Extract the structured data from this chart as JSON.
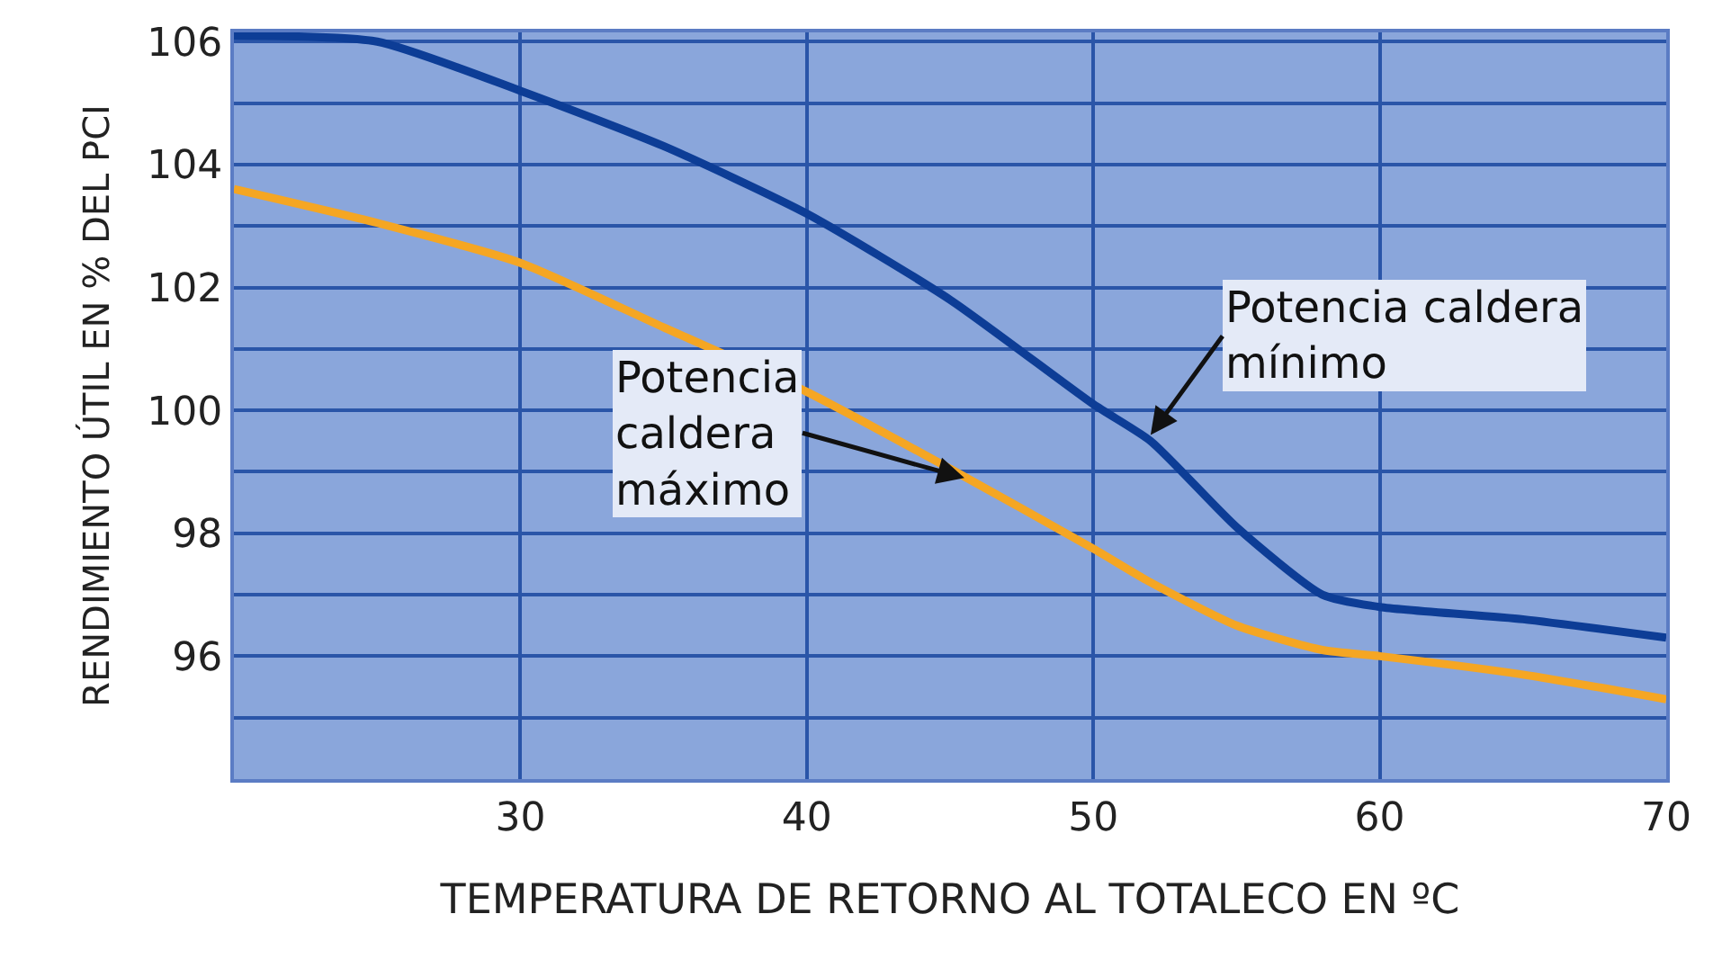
{
  "chart_data": {
    "type": "line",
    "xlabel": "TEMPERATURA DE RETORNO AL TOTALECO EN ºC",
    "ylabel": "RENDIMIENTO ÚTIL EN % DEL PCI",
    "x": [
      20,
      25,
      30,
      35,
      40,
      45,
      50,
      52,
      55,
      58,
      60,
      65,
      70
    ],
    "series": [
      {
        "color": "#0d3d96",
        "values": [
          106.1,
          106.0,
          105.2,
          104.3,
          103.2,
          101.8,
          100.1,
          99.5,
          98.1,
          97.0,
          96.8,
          96.6,
          96.3
        ]
      },
      {
        "color": "#f5a623",
        "values": [
          103.6,
          103.05,
          102.4,
          101.35,
          100.3,
          99.05,
          97.75,
          97.2,
          96.5,
          96.1,
          96.0,
          95.7,
          95.3
        ]
      }
    ],
    "annotations": [
      {
        "text": "Potencia caldera\nmínimo",
        "x": 52,
        "y": 99.6
      },
      {
        "text": "Potencia\ncaldera\nmáximo",
        "x": 45.5,
        "y": 98.9
      }
    ],
    "xlim": [
      20,
      70
    ],
    "xticks": [
      30,
      40,
      50,
      60,
      70
    ],
    "ylim": [
      94,
      106.15
    ],
    "yticks": [
      {
        "value": 95,
        "label": null
      },
      96,
      {
        "value": 97,
        "label": null
      },
      98,
      {
        "value": 99,
        "label": null
      },
      100,
      {
        "value": 101,
        "label": null
      },
      102,
      {
        "value": 103,
        "label": null
      },
      104,
      {
        "value": 105,
        "label": null
      },
      106
    ],
    "grid": true,
    "line_style": "solid",
    "marker": "none"
  }
}
